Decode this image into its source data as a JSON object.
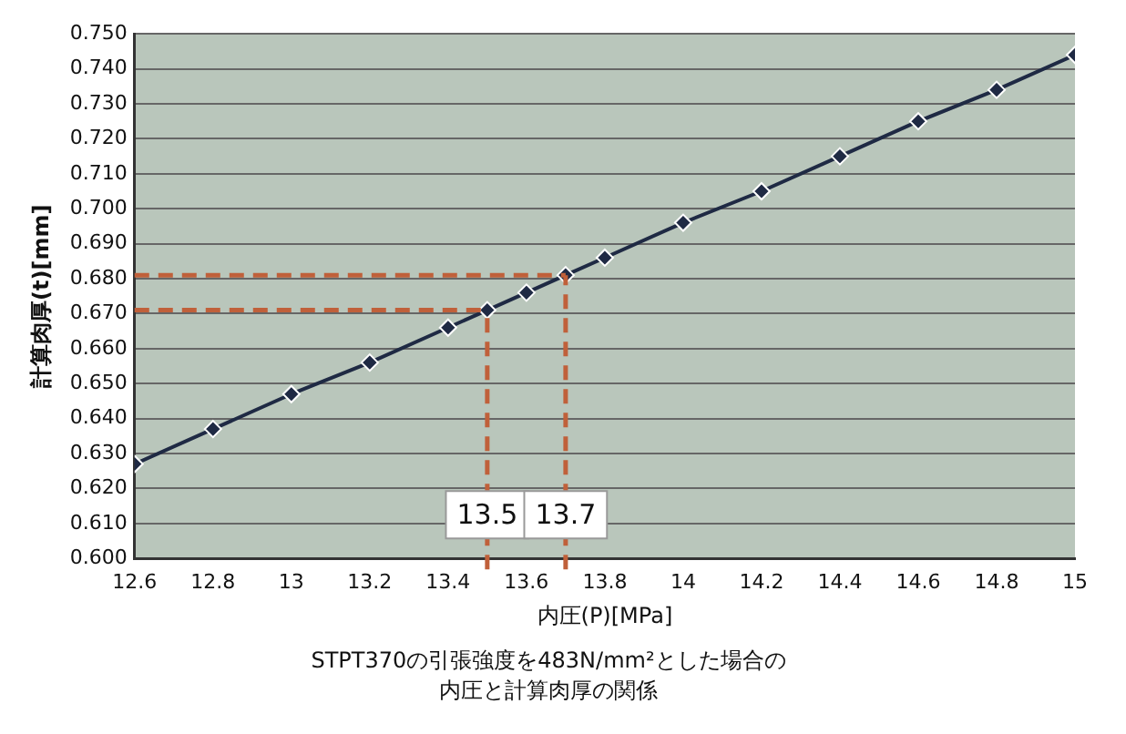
{
  "chart_data": {
    "type": "line",
    "title": "STPT370の引張強度を483N/mm²とした場合の",
    "subtitle": "内圧と計算肉厚の関係",
    "xlabel": "内圧(P)[MPa]",
    "ylabel": "計算肉厚(t)[mm]",
    "x": [
      12.6,
      12.8,
      13,
      13.2,
      13.4,
      13.5,
      13.6,
      13.7,
      13.8,
      14,
      14.2,
      14.4,
      14.6,
      14.8,
      15
    ],
    "series": [
      {
        "color": "#1f2a44",
        "values": [
          0.627,
          0.637,
          0.647,
          0.656,
          0.666,
          0.671,
          0.676,
          0.681,
          0.686,
          0.696,
          0.705,
          0.715,
          0.725,
          0.734,
          0.744
        ]
      }
    ],
    "xlim": [
      12.6,
      15
    ],
    "xticks": [
      12.6,
      12.8,
      13,
      13.2,
      13.4,
      13.6,
      13.8,
      14,
      14.2,
      14.4,
      14.6,
      14.8,
      15
    ],
    "ylim": [
      0.6,
      0.75
    ],
    "yticks": [
      {
        "value": 0.6,
        "label": "0.600"
      },
      {
        "value": 0.61,
        "label": "0.610"
      },
      {
        "value": 0.62,
        "label": "0.620"
      },
      {
        "value": 0.63,
        "label": "0.630"
      },
      {
        "value": 0.64,
        "label": "0.640"
      },
      {
        "value": 0.65,
        "label": "0.650"
      },
      {
        "value": 0.66,
        "label": "0.660"
      },
      {
        "value": 0.67,
        "label": "0.670"
      },
      {
        "value": 0.68,
        "label": "0.680"
      },
      {
        "value": 0.69,
        "label": "0.690"
      },
      {
        "value": 0.7,
        "label": "0.700"
      },
      {
        "value": 0.71,
        "label": "0.710"
      },
      {
        "value": 0.72,
        "label": "0.720"
      },
      {
        "value": 0.73,
        "label": "0.730"
      },
      {
        "value": 0.74,
        "label": "0.740"
      },
      {
        "value": 0.75,
        "label": "0.750"
      }
    ],
    "ref_lines": [
      {
        "axis": "x",
        "value": 13.5,
        "label": "13.5",
        "color": "#c0603a",
        "line_style": "dashed"
      },
      {
        "axis": "x",
        "value": 13.7,
        "label": "13.7",
        "color": "#c0603a",
        "line_style": "dashed"
      },
      {
        "axis": "y",
        "value": 0.671,
        "color": "#c0603a",
        "line_style": "dashed"
      },
      {
        "axis": "y",
        "value": 0.681,
        "color": "#c0603a",
        "line_style": "dashed"
      }
    ],
    "grid": "y",
    "legend": false,
    "marker": "diamond",
    "line_style": "solid"
  }
}
